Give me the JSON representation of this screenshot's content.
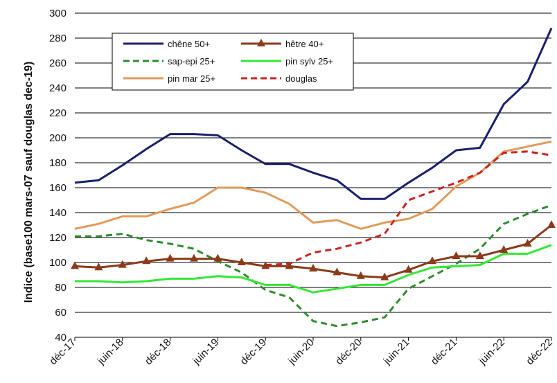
{
  "chart_data": {
    "type": "line",
    "title": "",
    "xlabel": "",
    "ylabel": "Indice (base100 mars-07 sauf douglas dec-19)",
    "ylim": [
      40,
      300
    ],
    "yticks": [
      40,
      60,
      80,
      100,
      120,
      140,
      160,
      180,
      200,
      220,
      240,
      260,
      280,
      300
    ],
    "x_tick_labels": [
      "déc-17",
      "juin-18",
      "déc-18",
      "juin-19",
      "déc-19",
      "juin-20",
      "déc-20",
      "juin-21",
      "déc-21",
      "juin-22",
      "déc-22"
    ],
    "x_units": "quarters since déc-17",
    "grid": "horizontal",
    "legend_position": "top-left inside",
    "series": [
      {
        "name": "chêne 50+",
        "color": "#1a1f6e",
        "style": "solid",
        "marker": "none",
        "points": [
          [
            0,
            164
          ],
          [
            0.5,
            165
          ],
          [
            1,
            166
          ],
          [
            2,
            178
          ],
          [
            3,
            191
          ],
          [
            4,
            203
          ],
          [
            5,
            203
          ],
          [
            6,
            202
          ],
          [
            7,
            190
          ],
          [
            8,
            179
          ],
          [
            9,
            179
          ],
          [
            10,
            172
          ],
          [
            11,
            166
          ],
          [
            12,
            151
          ],
          [
            13,
            151
          ],
          [
            14,
            164
          ],
          [
            15,
            176
          ],
          [
            16,
            190
          ],
          [
            17,
            192
          ],
          [
            18,
            227
          ],
          [
            19,
            245
          ],
          [
            20,
            288
          ]
        ]
      },
      {
        "name": "hêtre 40+",
        "color": "#8b3a1a",
        "style": "solid",
        "marker": "triangle",
        "points": [
          [
            0,
            97
          ],
          [
            1,
            96
          ],
          [
            2,
            98
          ],
          [
            3,
            101
          ],
          [
            4,
            103
          ],
          [
            5,
            103
          ],
          [
            6,
            103
          ],
          [
            7,
            100
          ],
          [
            8,
            97
          ],
          [
            9,
            97
          ],
          [
            10,
            95
          ],
          [
            11,
            92
          ],
          [
            12,
            89
          ],
          [
            13,
            88
          ],
          [
            14,
            94
          ],
          [
            15,
            101
          ],
          [
            16,
            105
          ],
          [
            17,
            105
          ],
          [
            18,
            110
          ],
          [
            19,
            115
          ],
          [
            20,
            130
          ]
        ]
      },
      {
        "name": "sap-epi 25+",
        "color": "#2e8b2e",
        "style": "dashed",
        "marker": "none",
        "points": [
          [
            0,
            121
          ],
          [
            1,
            121
          ],
          [
            2,
            123
          ],
          [
            3,
            118
          ],
          [
            4,
            115
          ],
          [
            5,
            111
          ],
          [
            6,
            101
          ],
          [
            7,
            92
          ],
          [
            8,
            78
          ],
          [
            9,
            72
          ],
          [
            10,
            53
          ],
          [
            11,
            49
          ],
          [
            12,
            52
          ],
          [
            13,
            56
          ],
          [
            14,
            79
          ],
          [
            15,
            89
          ],
          [
            16,
            99
          ],
          [
            17,
            111
          ],
          [
            18,
            131
          ],
          [
            19,
            139
          ],
          [
            20,
            146
          ]
        ]
      },
      {
        "name": "pin sylv 25+",
        "color": "#33e833",
        "style": "solid",
        "marker": "none",
        "points": [
          [
            0,
            85
          ],
          [
            1,
            85
          ],
          [
            2,
            84
          ],
          [
            3,
            85
          ],
          [
            4,
            87
          ],
          [
            5,
            87
          ],
          [
            6,
            89
          ],
          [
            7,
            88
          ],
          [
            8,
            82
          ],
          [
            9,
            82
          ],
          [
            10,
            76
          ],
          [
            11,
            79
          ],
          [
            12,
            82
          ],
          [
            13,
            82
          ],
          [
            14,
            90
          ],
          [
            15,
            96
          ],
          [
            16,
            97
          ],
          [
            17,
            98
          ],
          [
            18,
            107
          ],
          [
            19,
            107
          ],
          [
            20,
            114
          ]
        ]
      },
      {
        "name": "pin mar 25+",
        "color": "#e39a5a",
        "style": "solid",
        "marker": "none",
        "points": [
          [
            0,
            127
          ],
          [
            1,
            131
          ],
          [
            2,
            137
          ],
          [
            3,
            137
          ],
          [
            4,
            143
          ],
          [
            5,
            148
          ],
          [
            6,
            160
          ],
          [
            7,
            160
          ],
          [
            8,
            156
          ],
          [
            9,
            147
          ],
          [
            10,
            132
          ],
          [
            11,
            134
          ],
          [
            12,
            127
          ],
          [
            13,
            132
          ],
          [
            14,
            135
          ],
          [
            15,
            143
          ],
          [
            16,
            161
          ],
          [
            17,
            172
          ],
          [
            18,
            189
          ],
          [
            19,
            193
          ],
          [
            20,
            197
          ]
        ]
      },
      {
        "name": "douglas",
        "color": "#cc2222",
        "style": "dashed",
        "marker": "none",
        "points": [
          [
            8,
            98
          ],
          [
            9,
            99
          ],
          [
            10,
            108
          ],
          [
            11,
            111
          ],
          [
            12,
            116
          ],
          [
            13,
            123
          ],
          [
            14,
            150
          ],
          [
            15,
            157
          ],
          [
            16,
            164
          ],
          [
            17,
            172
          ],
          [
            18,
            188
          ],
          [
            19,
            189
          ],
          [
            20,
            186
          ]
        ]
      }
    ]
  }
}
